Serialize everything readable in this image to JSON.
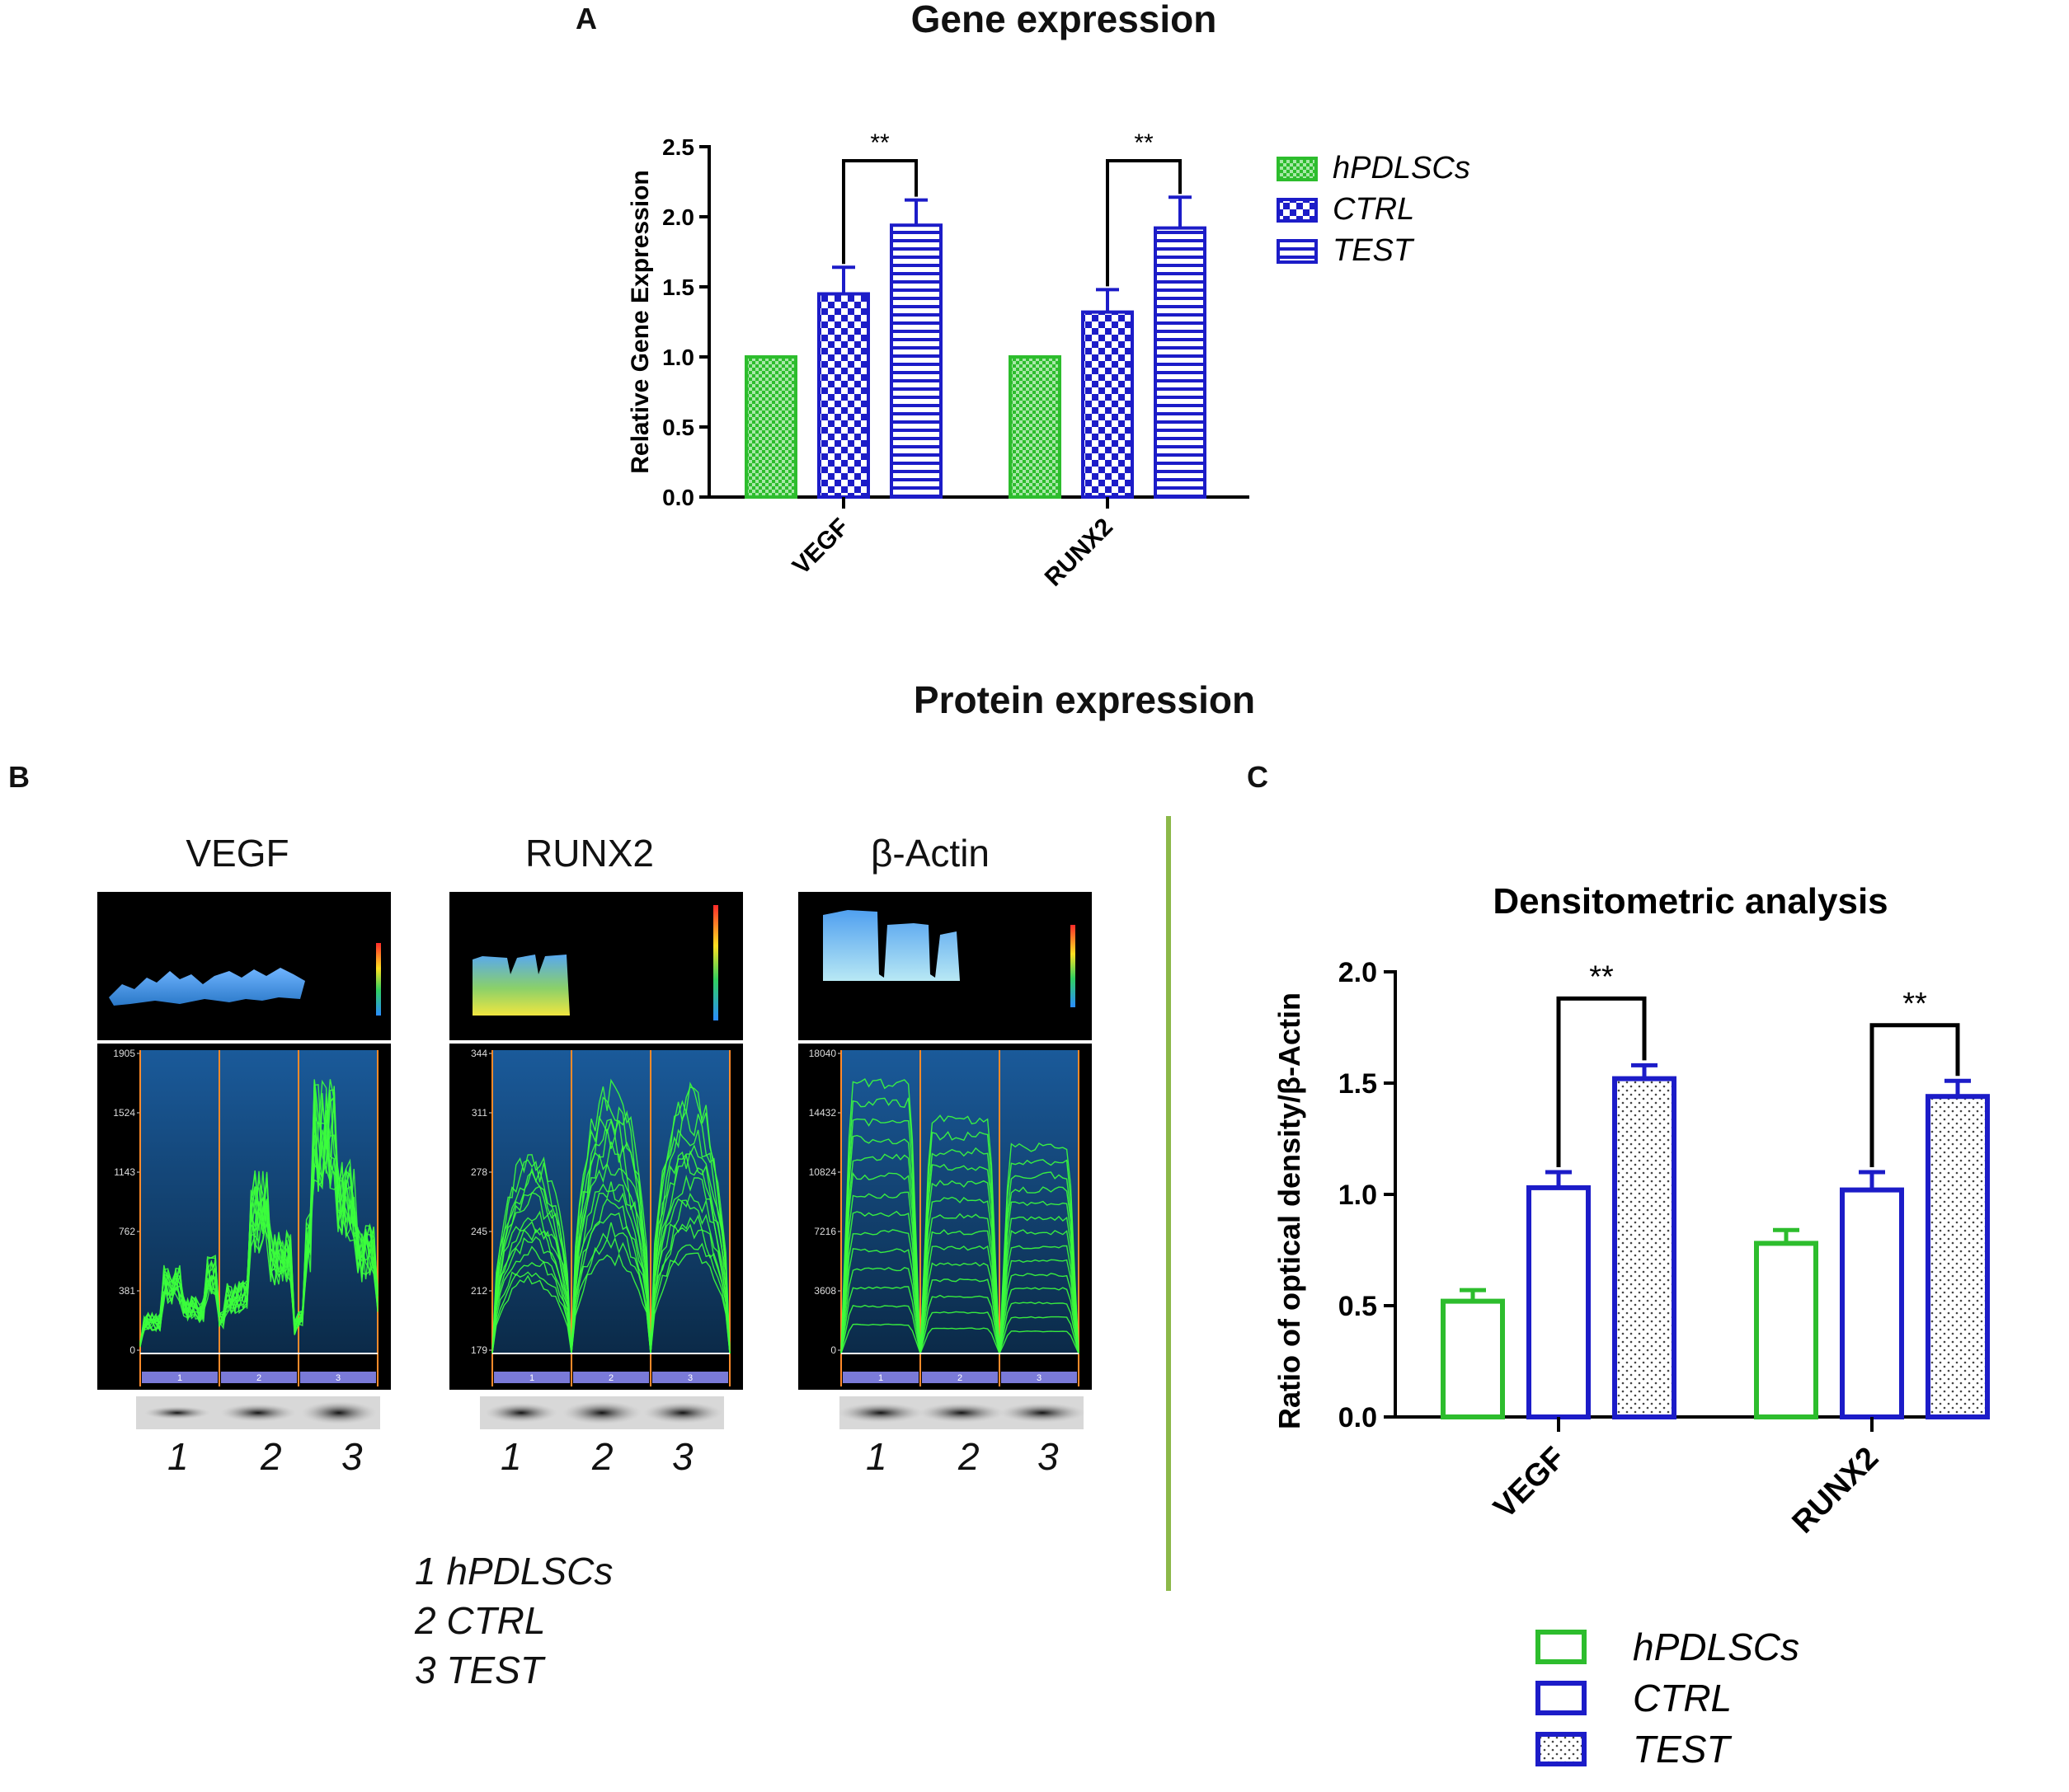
{
  "panel_a": {
    "letter": "A",
    "section_title": "Gene expression"
  },
  "panel_b": {
    "letter": "B",
    "section_title": "Protein expression",
    "blots": [
      {
        "title": "VEGF",
        "y_ticks": [
          "1905",
          "1524",
          "1143",
          "762",
          "381",
          "0"
        ],
        "lanes": [
          "1",
          "2",
          "3"
        ],
        "lane_labels": [
          "1",
          "2",
          "3"
        ]
      },
      {
        "title": "RUNX2",
        "y_ticks": [
          "344",
          "311",
          "278",
          "245",
          "212",
          "179"
        ],
        "lanes": [
          "1",
          "2",
          "3"
        ],
        "lane_labels": [
          "1",
          "2",
          "3"
        ]
      },
      {
        "title": "β-Actin",
        "y_ticks": [
          "18040",
          "14432",
          "10824",
          "7216",
          "3608",
          "0"
        ],
        "lanes": [
          "1",
          "2",
          "3"
        ],
        "lane_labels": [
          "1",
          "2",
          "3"
        ]
      }
    ],
    "lane_key": [
      "1 hPDLSCs",
      "2 CTRL",
      "3 TEST"
    ]
  },
  "panel_c": {
    "letter": "C"
  },
  "colors": {
    "green": "#2dbd2d",
    "blue": "#1c1cc8",
    "divider": "#8cb84a"
  },
  "chart_data": [
    {
      "id": "gene-expression",
      "type": "bar",
      "title": "",
      "categories": [
        "VEGF",
        "RUNX2"
      ],
      "series": [
        {
          "name": "hPDLSCs",
          "values": [
            1.0,
            1.0
          ],
          "errors": [
            0,
            0
          ]
        },
        {
          "name": "CTRL",
          "values": [
            1.45,
            1.32
          ],
          "errors": [
            0.19,
            0.16
          ]
        },
        {
          "name": "TEST",
          "values": [
            1.94,
            1.92
          ],
          "errors": [
            0.18,
            0.22
          ]
        }
      ],
      "significance": [
        {
          "category": "VEGF",
          "label": "**"
        },
        {
          "category": "RUNX2",
          "label": "**"
        }
      ],
      "xlabel": "",
      "ylabel": "Relative Gene Expression",
      "ylim": [
        0,
        2.5
      ],
      "yticks": [
        "0.0",
        "0.5",
        "1.0",
        "1.5",
        "2.0",
        "2.5"
      ],
      "legend": "right"
    },
    {
      "id": "densitometric",
      "type": "bar",
      "title": "Densitometric analysis",
      "categories": [
        "VEGF",
        "RUNX2"
      ],
      "series": [
        {
          "name": "hPDLSCs",
          "values": [
            0.52,
            0.78
          ],
          "errors": [
            0.05,
            0.06
          ]
        },
        {
          "name": "CTRL",
          "values": [
            1.03,
            1.02
          ],
          "errors": [
            0.07,
            0.08
          ]
        },
        {
          "name": "TEST",
          "values": [
            1.52,
            1.44
          ],
          "errors": [
            0.06,
            0.07
          ]
        }
      ],
      "significance": [
        {
          "category": "VEGF",
          "label": "**"
        },
        {
          "category": "RUNX2",
          "label": "**"
        }
      ],
      "xlabel": "",
      "ylabel": "Ratio of optical density/β-Actin",
      "ylim": [
        0,
        2.0
      ],
      "yticks": [
        "0.0",
        "0.5",
        "1.0",
        "1.5",
        "2.0"
      ],
      "legend": "bottom"
    }
  ]
}
